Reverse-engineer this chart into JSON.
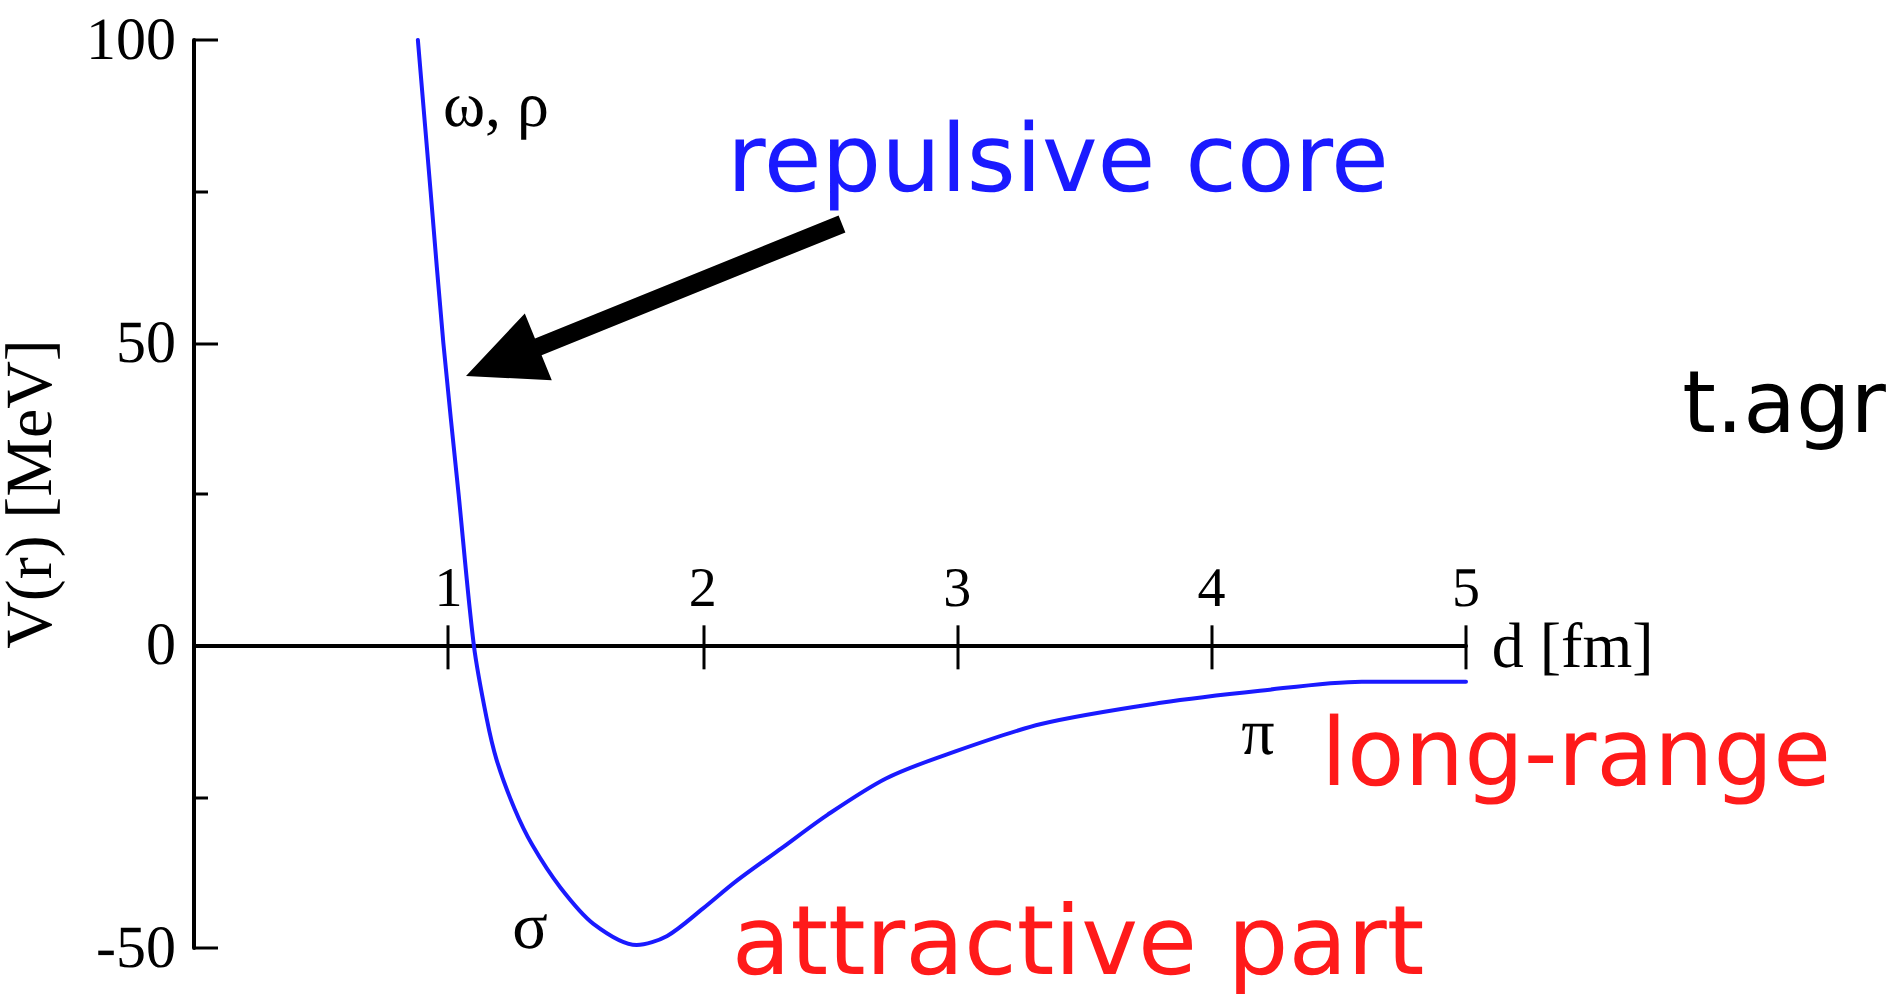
{
  "chart_data": {
    "type": "line",
    "xlabel": "d [fm]",
    "ylabel": "V(r) [MeV]",
    "x": [
      0.88,
      0.93,
      0.98,
      1.04,
      1.1,
      1.15,
      1.19,
      1.26,
      1.33,
      1.44,
      1.57,
      1.74,
      1.86,
      2.0,
      2.13,
      2.31,
      2.49,
      2.72,
      2.96,
      3.33,
      3.8,
      4.19,
      4.59,
      5.0
    ],
    "series": [
      {
        "color": "#1a1aff",
        "values": [
          100,
          75,
          50,
          25,
          0,
          -12,
          -19,
          -27,
          -33,
          -40,
          -46,
          -49.5,
          -48,
          -43.5,
          -39,
          -33.5,
          -28,
          -22,
          -18,
          -13,
          -9.5,
          -7.5,
          -6,
          -6
        ]
      }
    ],
    "xlim": [
      0,
      5
    ],
    "xticks": [
      1,
      2,
      3,
      4,
      5
    ],
    "ylim": [
      -50,
      100
    ],
    "yticks": [
      -50,
      {
        "value": -25,
        "label": null
      },
      0,
      {
        "value": 25,
        "label": null
      },
      50,
      {
        "value": 75,
        "label": null
      },
      100
    ],
    "grid": false,
    "line_style": "solid",
    "marker": "none",
    "annotations": [
      "ω, ρ",
      "repulsive core",
      "σ",
      "attractive part",
      "π",
      "long-range",
      "t.agr"
    ]
  }
}
